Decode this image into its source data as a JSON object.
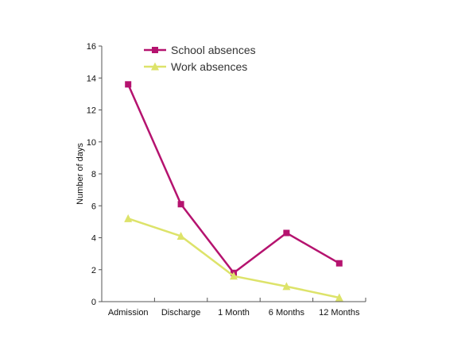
{
  "chart_data": {
    "type": "line",
    "title": "",
    "xlabel": "",
    "ylabel": "Number of days",
    "categories": [
      "Admission",
      "Discharge",
      "1 Month",
      "6 Months",
      "12 Months"
    ],
    "ylim": [
      0,
      16
    ],
    "yticks": [
      0,
      2,
      4,
      6,
      8,
      10,
      12,
      14,
      16
    ],
    "grid": false,
    "legend_position": "top-left",
    "series": [
      {
        "name": "School absences",
        "values": [
          13.6,
          6.1,
          1.8,
          4.3,
          2.4
        ],
        "color": "#b5136f",
        "marker": "square"
      },
      {
        "name": "Work absences",
        "values": [
          5.2,
          4.1,
          1.6,
          0.95,
          0.25
        ],
        "color": "#dde36a",
        "marker": "triangle"
      }
    ]
  }
}
